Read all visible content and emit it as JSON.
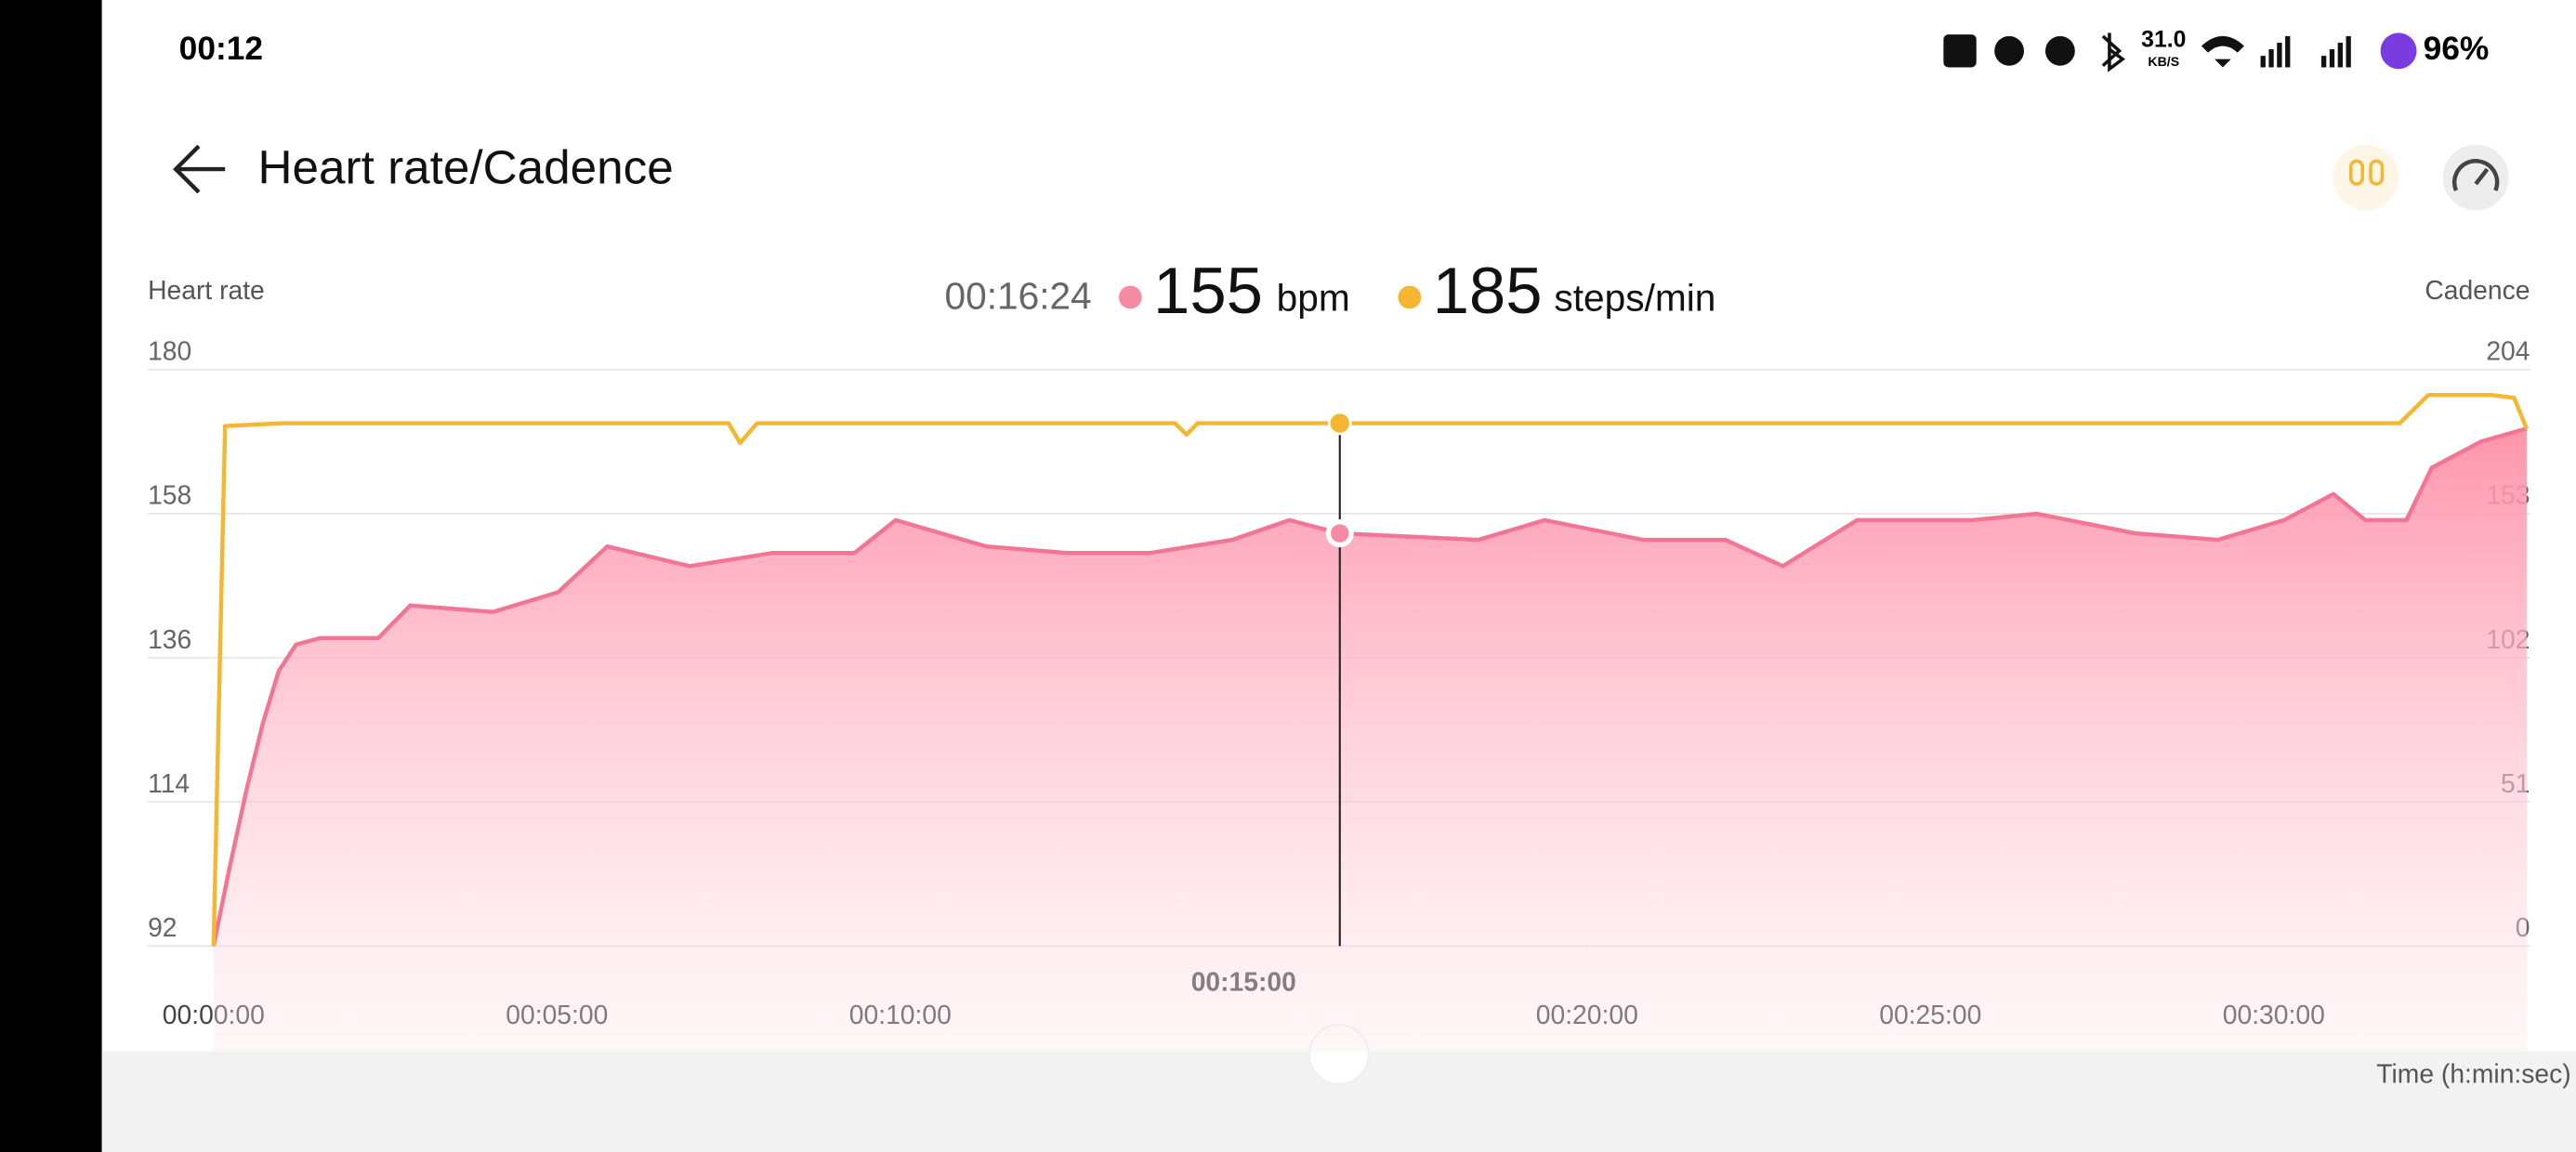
{
  "status_bar": {
    "time": "00:12",
    "speed": "31.0",
    "speed_unit": "KB/S",
    "battery": "96%"
  },
  "header": {
    "title": "Heart rate/Cadence"
  },
  "chart_data": {
    "type": "line",
    "y_label": "Heart rate",
    "y2_label": "Cadence",
    "x_label": "Time (h:min:sec)",
    "readout": {
      "time": {
        "value": 984,
        "label": "00:16:24"
      },
      "values": [
        155,
        185
      ],
      "units": [
        "bpm",
        "steps/min"
      ],
      "colors": [
        "#f48aa3",
        "#f5b731"
      ]
    },
    "xlim": [
      0,
      2021
    ],
    "xticks": [
      {
        "value": 0,
        "label": "00:00:00"
      },
      {
        "value": 300,
        "label": "00:05:00"
      },
      {
        "value": 600,
        "label": "00:10:00"
      },
      {
        "value": 900,
        "label": "00:15:00"
      },
      {
        "value": 1200,
        "label": "00:20:00"
      },
      {
        "value": 1500,
        "label": "00:25:00"
      },
      {
        "value": 1800,
        "label": "00:30:00"
      }
    ],
    "current_xtick_index": 3,
    "ylim": [
      92,
      180
    ],
    "yticks": [
      92,
      114,
      136,
      158,
      180
    ],
    "y2lim": [
      0,
      204
    ],
    "y2ticks": [
      0,
      51,
      102,
      153,
      204
    ],
    "grid": true,
    "series": [
      {
        "color": "#f27594",
        "area": true,
        "axis": "y",
        "x": [
          0,
          14,
          29,
          43,
          57,
          72,
          93,
          144,
          172,
          244,
          301,
          344,
          416,
          488,
          560,
          596,
          675,
          746,
          818,
          890,
          940,
          984,
          1105,
          1163,
          1249,
          1321,
          1371,
          1436,
          1536,
          1593,
          1679,
          1751,
          1809,
          1852,
          1880,
          1916,
          1938,
          1981,
          2021
        ],
        "values": [
          92,
          104,
          116,
          126,
          134,
          138,
          139,
          139,
          144,
          143,
          146,
          153,
          150,
          152,
          152,
          157,
          153,
          152,
          152,
          154,
          157,
          155,
          154,
          157,
          154,
          154,
          150,
          157,
          157,
          158,
          155,
          154,
          157,
          161,
          157,
          157,
          165,
          169,
          171
        ]
      },
      {
        "color": "#f5b731",
        "area": false,
        "axis": "y2",
        "x": [
          0,
          10,
          60,
          300,
          450,
          460,
          475,
          840,
          850,
          860,
          1600,
          1910,
          1935,
          1990,
          2010,
          2021
        ],
        "values": [
          0,
          184,
          185,
          185,
          185,
          178,
          185,
          185,
          181,
          185,
          185,
          185,
          195,
          195,
          194,
          183
        ]
      }
    ]
  }
}
